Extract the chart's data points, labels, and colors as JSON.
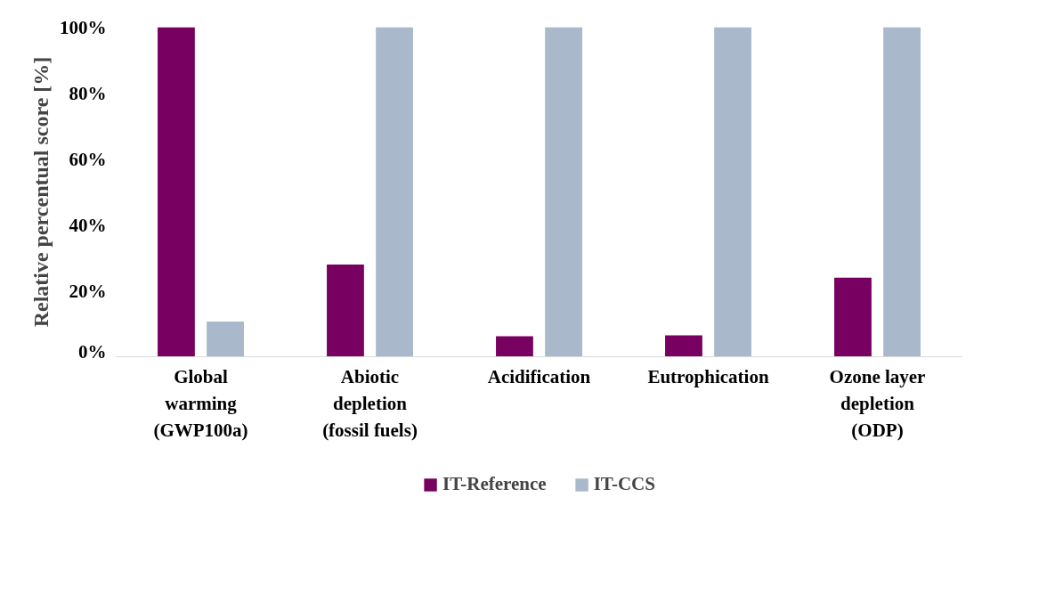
{
  "chart_data": {
    "type": "bar",
    "ylabel": "Relative percentual score [%]",
    "categories": [
      "Global warming (GWP100a)",
      "Abiotic depletion (fossil fuels)",
      "Acidification",
      "Eutrophication",
      "Ozone layer depletion (ODP)"
    ],
    "series": [
      {
        "name": "IT-Reference",
        "color": "#770060",
        "values": [
          100,
          28,
          6.2,
          6.5,
          24
        ]
      },
      {
        "name": "IT-CCS",
        "color": "#a9b9cb",
        "values": [
          10.7,
          100,
          100,
          100,
          100
        ]
      }
    ],
    "ylim": [
      0,
      100
    ],
    "yticks": [
      {
        "value": 0,
        "label": "0%"
      },
      {
        "value": 20,
        "label": "20%"
      },
      {
        "value": 40,
        "label": "40%"
      },
      {
        "value": 60,
        "label": "60%"
      },
      {
        "value": 80,
        "label": "80%"
      },
      {
        "value": 100,
        "label": "100%"
      }
    ],
    "grid": false,
    "legend": "bottom"
  }
}
